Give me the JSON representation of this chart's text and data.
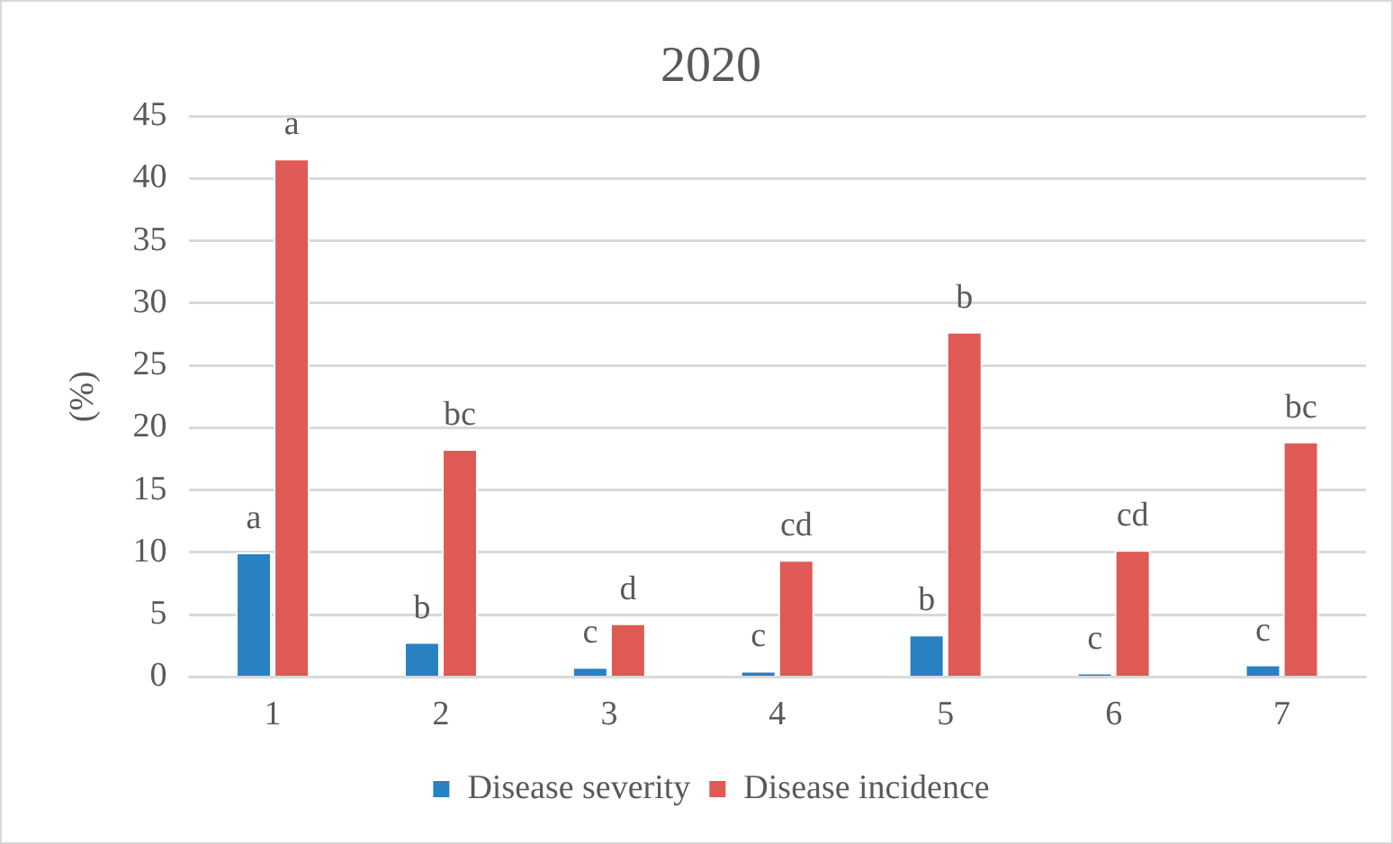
{
  "chart_data": {
    "type": "bar",
    "title": "2020",
    "ylabel": "(%)",
    "categories": [
      "1",
      "2",
      "3",
      "4",
      "5",
      "6",
      "7"
    ],
    "series": [
      {
        "name": "Disease severity",
        "color": "#2981c2",
        "values": [
          10,
          2.8,
          0.8,
          0.5,
          3.4,
          0.3,
          1.0
        ],
        "value_labels": [
          "a",
          "b",
          "c",
          "c",
          "b",
          "c",
          "c"
        ]
      },
      {
        "name": "Disease incidence",
        "color": "#e05a55",
        "values": [
          41.6,
          18.3,
          4.3,
          9.4,
          27.7,
          10.2,
          18.9
        ],
        "value_labels": [
          "a",
          "bc",
          "d",
          "cd",
          "b",
          "cd",
          "bc"
        ]
      }
    ],
    "ylim": [
      0,
      45
    ],
    "yticks": [
      0,
      5,
      10,
      15,
      20,
      25,
      30,
      35,
      40,
      45
    ],
    "grid": "y",
    "legend": "bottom"
  }
}
